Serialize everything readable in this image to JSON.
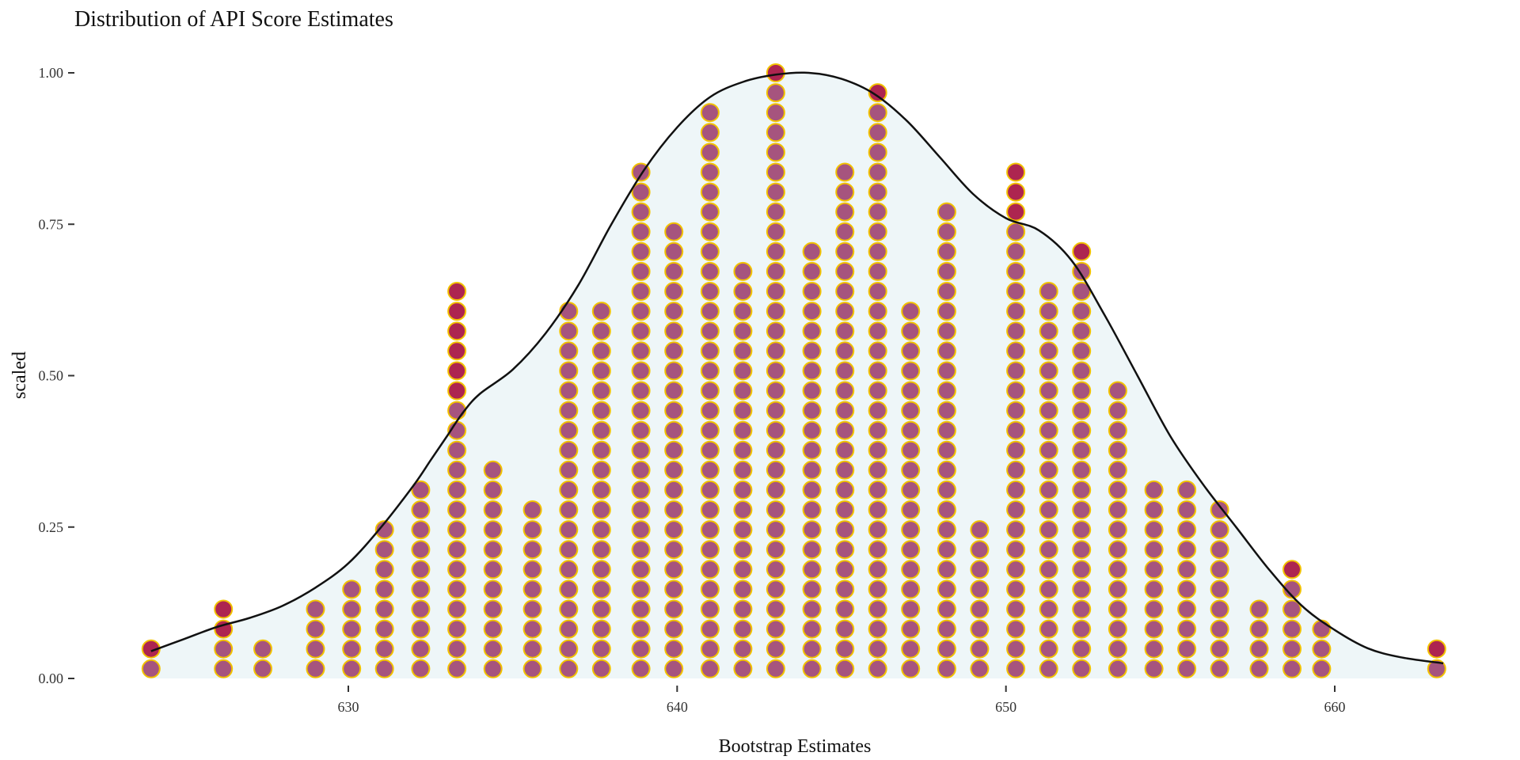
{
  "chart_data": {
    "type": "dotplot",
    "title": "Distribution of API Score Estimates",
    "xlabel": "Bootstrap Estimates",
    "ylabel": "scaled",
    "xlim": [
      622,
      665
    ],
    "ylim": [
      0,
      1
    ],
    "x_ticks": [
      630,
      640,
      650,
      660
    ],
    "y_ticks": [
      {
        "value": 0.0,
        "label": "0.00"
      },
      {
        "value": 0.25,
        "label": "0.25"
      },
      {
        "value": 0.5,
        "label": "0.50"
      },
      {
        "value": 0.75,
        "label": "0.75"
      },
      {
        "value": 1.0,
        "label": "1.00"
      }
    ],
    "stack_step": 0.0328,
    "stack_base": 0.016,
    "grid": false,
    "legend": "none",
    "colors": {
      "dot_fill": "#a6547e",
      "dot_overflow_fill": "#ad2550",
      "dot_stroke": "#f2c200",
      "density_fill": "#eef6f8",
      "density_line": "#111111"
    },
    "density": [
      [
        624.0,
        0.045
      ],
      [
        625.0,
        0.065
      ],
      [
        626.0,
        0.085
      ],
      [
        627.0,
        0.1
      ],
      [
        628.0,
        0.12
      ],
      [
        629.0,
        0.15
      ],
      [
        630.0,
        0.19
      ],
      [
        631.0,
        0.25
      ],
      [
        632.0,
        0.32
      ],
      [
        632.5,
        0.36
      ],
      [
        633.0,
        0.4
      ],
      [
        633.5,
        0.44
      ],
      [
        634.0,
        0.47
      ],
      [
        635.0,
        0.51
      ],
      [
        636.0,
        0.57
      ],
      [
        637.0,
        0.65
      ],
      [
        638.0,
        0.75
      ],
      [
        639.0,
        0.84
      ],
      [
        640.0,
        0.91
      ],
      [
        641.0,
        0.96
      ],
      [
        642.0,
        0.985
      ],
      [
        643.0,
        0.997
      ],
      [
        644.0,
        1.0
      ],
      [
        645.0,
        0.99
      ],
      [
        646.0,
        0.965
      ],
      [
        647.0,
        0.92
      ],
      [
        648.0,
        0.86
      ],
      [
        649.0,
        0.8
      ],
      [
        650.0,
        0.76
      ],
      [
        651.0,
        0.74
      ],
      [
        652.0,
        0.69
      ],
      [
        653.0,
        0.6
      ],
      [
        654.0,
        0.5
      ],
      [
        655.0,
        0.4
      ],
      [
        656.0,
        0.32
      ],
      [
        657.0,
        0.25
      ],
      [
        658.0,
        0.18
      ],
      [
        659.0,
        0.12
      ],
      [
        660.0,
        0.08
      ],
      [
        661.0,
        0.05
      ],
      [
        662.0,
        0.035
      ],
      [
        663.3,
        0.025
      ]
    ],
    "stacks": [
      {
        "x": 624.0,
        "count": 2,
        "overflow": 1
      },
      {
        "x": 626.2,
        "count": 4,
        "overflow": 2
      },
      {
        "x": 627.4,
        "count": 2,
        "overflow": 0
      },
      {
        "x": 629.0,
        "count": 4,
        "overflow": 0
      },
      {
        "x": 630.1,
        "count": 5,
        "overflow": 0
      },
      {
        "x": 631.1,
        "count": 8,
        "overflow": 0
      },
      {
        "x": 632.2,
        "count": 10,
        "overflow": 0
      },
      {
        "x": 633.3,
        "count": 20,
        "overflow": 6
      },
      {
        "x": 634.4,
        "count": 11,
        "overflow": 0
      },
      {
        "x": 635.6,
        "count": 9,
        "overflow": 0
      },
      {
        "x": 636.7,
        "count": 19,
        "overflow": 0
      },
      {
        "x": 637.7,
        "count": 19,
        "overflow": 0
      },
      {
        "x": 638.9,
        "count": 26,
        "overflow": 0
      },
      {
        "x": 639.9,
        "count": 23,
        "overflow": 0
      },
      {
        "x": 641.0,
        "count": 29,
        "overflow": 0
      },
      {
        "x": 642.0,
        "count": 21,
        "overflow": 0
      },
      {
        "x": 643.0,
        "count": 31,
        "overflow": 1
      },
      {
        "x": 644.1,
        "count": 22,
        "overflow": 0
      },
      {
        "x": 645.1,
        "count": 26,
        "overflow": 0
      },
      {
        "x": 646.1,
        "count": 30,
        "overflow": 1
      },
      {
        "x": 647.1,
        "count": 19,
        "overflow": 0
      },
      {
        "x": 648.2,
        "count": 24,
        "overflow": 0
      },
      {
        "x": 649.2,
        "count": 8,
        "overflow": 0
      },
      {
        "x": 650.3,
        "count": 26,
        "overflow": 3
      },
      {
        "x": 651.3,
        "count": 20,
        "overflow": 0
      },
      {
        "x": 652.3,
        "count": 22,
        "overflow": 1
      },
      {
        "x": 653.4,
        "count": 15,
        "overflow": 0
      },
      {
        "x": 654.5,
        "count": 10,
        "overflow": 0
      },
      {
        "x": 655.5,
        "count": 10,
        "overflow": 0
      },
      {
        "x": 656.5,
        "count": 9,
        "overflow": 0
      },
      {
        "x": 657.7,
        "count": 4,
        "overflow": 0
      },
      {
        "x": 658.7,
        "count": 6,
        "overflow": 1
      },
      {
        "x": 659.6,
        "count": 3,
        "overflow": 0
      },
      {
        "x": 663.1,
        "count": 2,
        "overflow": 1
      }
    ]
  }
}
